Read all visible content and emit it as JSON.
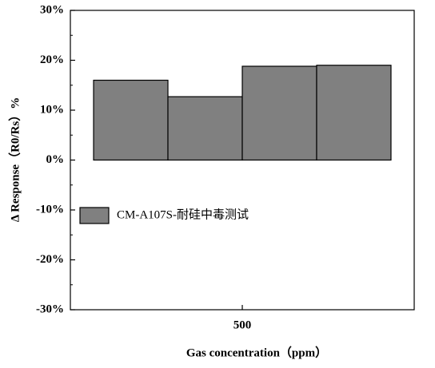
{
  "chart_data": {
    "type": "bar",
    "ylabel": "Δ Response（R0/Rs）%",
    "xlabel": "Gas concentration（ppm）",
    "categories": [
      "500"
    ],
    "series": [
      {
        "name": "CM-A107S-耐硅中毒测试",
        "color": "#808080",
        "values": [
          16
        ]
      },
      {
        "color": "#808080",
        "values": [
          12.7
        ]
      },
      {
        "color": "#808080",
        "values": [
          18.8
        ]
      },
      {
        "color": "#808080",
        "values": [
          19
        ]
      }
    ],
    "ylim": [
      -30,
      30
    ],
    "yticks": [
      {
        "value": -30,
        "label": "-30%"
      },
      {
        "value": -20,
        "label": "-20%"
      },
      {
        "value": -10,
        "label": "-10%"
      },
      {
        "value": 0,
        "label": "0%"
      },
      {
        "value": 10,
        "label": "10%"
      },
      {
        "value": 20,
        "label": "20%"
      },
      {
        "value": 30,
        "label": "30%"
      }
    ],
    "legend": "middle-left"
  }
}
